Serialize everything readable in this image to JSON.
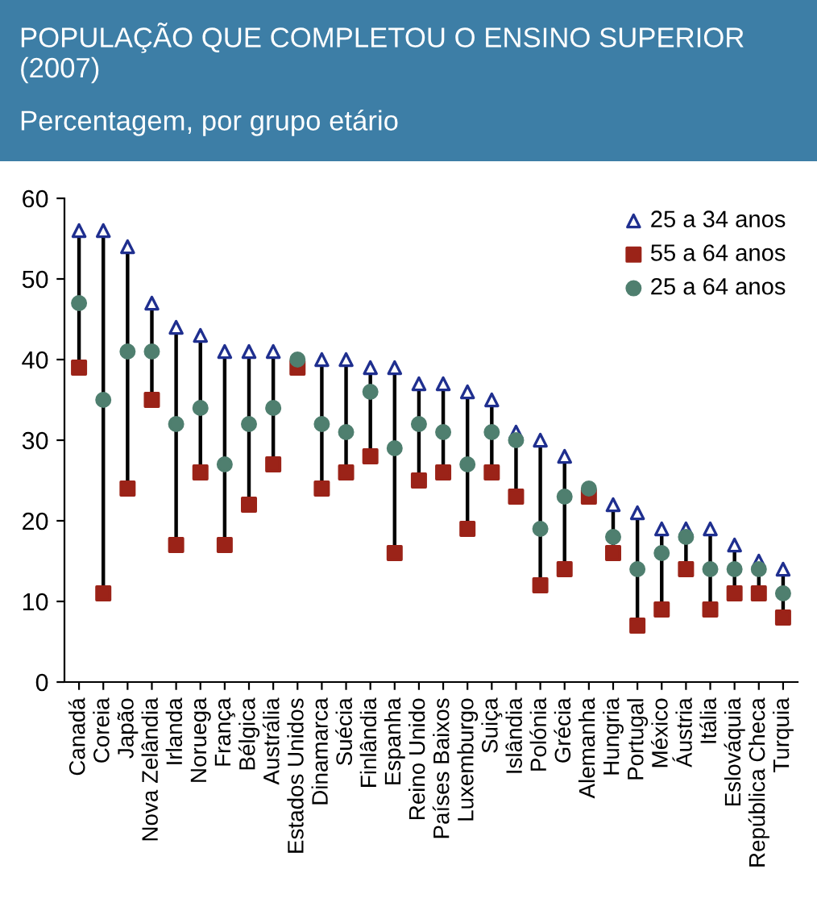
{
  "chart_data": {
    "type": "scatter",
    "title": "POPULAÇÃO QUE COMPLETOU O ENSINO SUPERIOR (2007)",
    "subtitle": "Percentagem, por grupo etário",
    "categories": [
      "Canadá",
      "Coreia",
      "Japão",
      "Nova Zelândia",
      "Irlanda",
      "Noruega",
      "França",
      "Bélgica",
      "Austrália",
      "Estados Unidos",
      "Dinamarca",
      "Suécia",
      "Finlândia",
      "Espanha",
      "Reino Unido",
      "Países Baixos",
      "Luxemburgo",
      "Suiça",
      "Islândia",
      "Polónia",
      "Grécia",
      "Alemanha",
      "Hungria",
      "Portugal",
      "México",
      "Áustria",
      "Itália",
      "Eslováquia",
      "República Checa",
      "Turquia"
    ],
    "series": [
      {
        "name": "25 a 34 anos",
        "color": "#1f2f8f",
        "marker": "triangle",
        "values": [
          56,
          56,
          54,
          47,
          44,
          43,
          41,
          41,
          41,
          null,
          40,
          40,
          39,
          39,
          37,
          37,
          36,
          35,
          31,
          30,
          28,
          null,
          22,
          21,
          19,
          19,
          19,
          17,
          15,
          14
        ]
      },
      {
        "name": "55 a 64 anos",
        "color": "#9b2318",
        "marker": "square",
        "values": [
          39,
          11,
          24,
          35,
          17,
          26,
          17,
          22,
          27,
          39,
          24,
          26,
          28,
          16,
          25,
          26,
          19,
          26,
          23,
          12,
          14,
          23,
          16,
          7,
          9,
          14,
          9,
          11,
          11,
          8
        ]
      },
      {
        "name": "25 a 64 anos",
        "color": "#4f7f6f",
        "marker": "circle",
        "values": [
          47,
          35,
          41,
          41,
          32,
          34,
          27,
          32,
          34,
          40,
          32,
          31,
          36,
          29,
          32,
          31,
          27,
          31,
          30,
          19,
          23,
          24,
          18,
          14,
          16,
          18,
          14,
          14,
          14,
          11
        ]
      }
    ],
    "ylim": [
      0,
      60
    ],
    "yticks": [
      0,
      10,
      20,
      30,
      40,
      50,
      60
    ],
    "legend": "top right"
  }
}
